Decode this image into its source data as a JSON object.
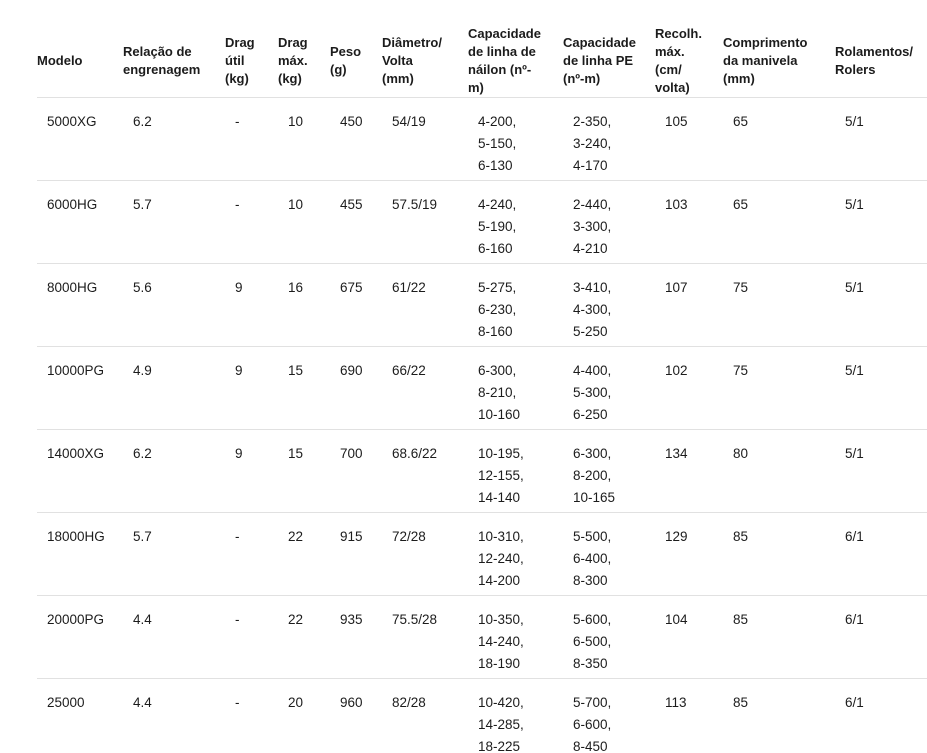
{
  "page": {
    "background_color": "#ffffff",
    "text_color": "#1c1c1c",
    "divider_color": "#e1e1e1"
  },
  "table": {
    "display_headers": [
      "Modelo",
      "Relação de\nengrenagem",
      "Drag\nútil\n(kg)",
      "Drag\nmáx.\n(kg)",
      "Peso\n(g)",
      "Diâmetro/\nVolta\n(mm)",
      "Capacidade\nde linha de\nnáilon (nº-\nm)",
      "Capacidade\nde linha PE\n(nº-m)",
      "Recolh.\nmáx.\n(cm/\nvolta)",
      "Comprimento\nda manivela\n(mm)",
      "Rolamentos/\nRolers"
    ]
  },
  "chart_data": {
    "type": "table",
    "title": "",
    "columns": [
      "Modelo",
      "Relação de engrenagem",
      "Drag útil (kg)",
      "Drag máx. (kg)",
      "Peso (g)",
      "Diâmetro/Volta (mm)",
      "Capacidade de linha de náilon (nº-m)",
      "Capacidade de linha PE (nº-m)",
      "Recolh. máx. (cm/volta)",
      "Comprimento da manivela (mm)",
      "Rolamentos/Rolers"
    ],
    "rows": [
      [
        "5000XG",
        "6.2",
        "-",
        "10",
        "450",
        "54/19",
        "4-200,\n5-150,\n6-130",
        "2-350,\n3-240,\n4-170",
        "105",
        "65",
        "5/1"
      ],
      [
        "6000HG",
        "5.7",
        "-",
        "10",
        "455",
        "57.5/19",
        "4-240,\n5-190,\n6-160",
        "2-440,\n3-300,\n4-210",
        "103",
        "65",
        "5/1"
      ],
      [
        "8000HG",
        "5.6",
        "9",
        "16",
        "675",
        "61/22",
        "5-275,\n6-230,\n8-160",
        "3-410,\n4-300,\n5-250",
        "107",
        "75",
        "5/1"
      ],
      [
        "10000PG",
        "4.9",
        "9",
        "15",
        "690",
        "66/22",
        "6-300,\n8-210,\n10-160",
        "4-400,\n5-300,\n6-250",
        "102",
        "75",
        "5/1"
      ],
      [
        "14000XG",
        "6.2",
        "9",
        "15",
        "700",
        "68.6/22",
        "10-195,\n12-155,\n14-140",
        "6-300,\n8-200,\n10-165",
        "134",
        "80",
        "5/1"
      ],
      [
        "18000HG",
        "5.7",
        "-",
        "22",
        "915",
        "72/28",
        "10-310,\n12-240,\n14-200",
        "5-500,\n6-400,\n8-300",
        "129",
        "85",
        "6/1"
      ],
      [
        "20000PG",
        "4.4",
        "-",
        "22",
        "935",
        "75.5/28",
        "10-350,\n14-240,\n18-190",
        "5-600,\n6-500,\n8-350",
        "104",
        "85",
        "6/1"
      ],
      [
        "25000",
        "4.4",
        "-",
        "20",
        "960",
        "82/28",
        "10-420,\n14-285,\n18-225",
        "5-700,\n6-600,\n8-450",
        "113",
        "85",
        "6/1"
      ]
    ]
  }
}
